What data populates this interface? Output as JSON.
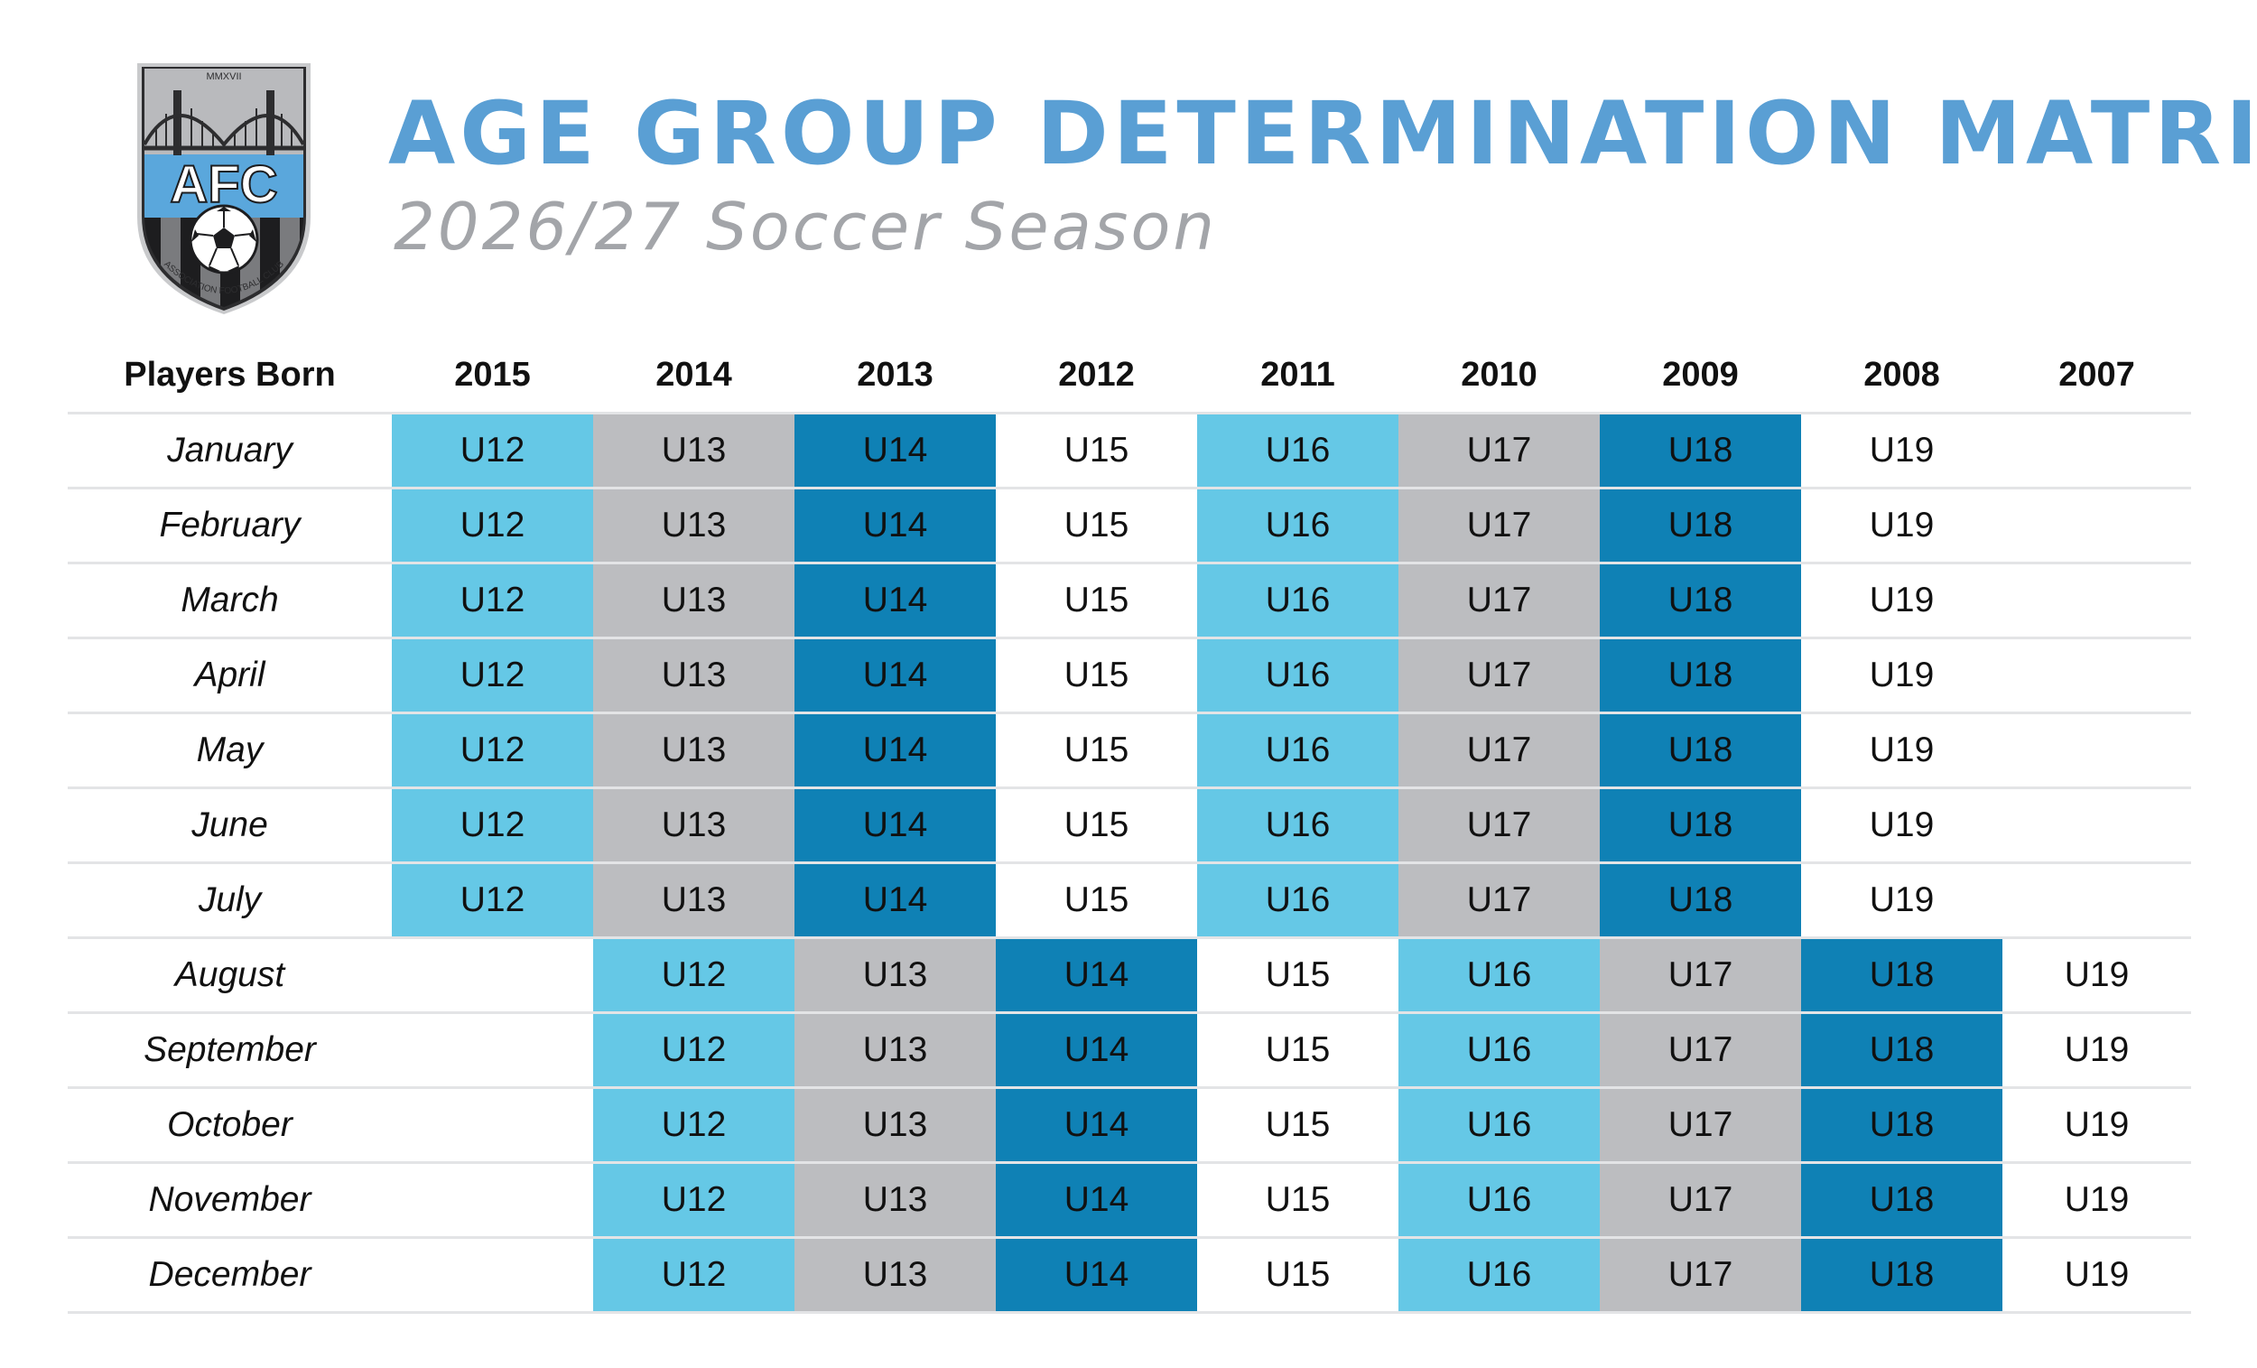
{
  "logo": {
    "top_text": "MMXVII",
    "letters": "AFC",
    "ring_text": "ASSOCIATION FOOTBALL CLUB"
  },
  "title": "AGE GROUP DETERMINATION MATRIX",
  "subtitle": "2026/27 Soccer Season",
  "table": {
    "header_label": "Players Born",
    "years": [
      "2015",
      "2014",
      "2013",
      "2012",
      "2011",
      "2010",
      "2009",
      "2008",
      "2007"
    ],
    "rows": [
      {
        "month": "January",
        "cells": [
          "U12",
          "U13",
          "U14",
          "U15",
          "U16",
          "U17",
          "U18",
          "U19",
          ""
        ]
      },
      {
        "month": "February",
        "cells": [
          "U12",
          "U13",
          "U14",
          "U15",
          "U16",
          "U17",
          "U18",
          "U19",
          ""
        ]
      },
      {
        "month": "March",
        "cells": [
          "U12",
          "U13",
          "U14",
          "U15",
          "U16",
          "U17",
          "U18",
          "U19",
          ""
        ]
      },
      {
        "month": "April",
        "cells": [
          "U12",
          "U13",
          "U14",
          "U15",
          "U16",
          "U17",
          "U18",
          "U19",
          ""
        ]
      },
      {
        "month": "May",
        "cells": [
          "U12",
          "U13",
          "U14",
          "U15",
          "U16",
          "U17",
          "U18",
          "U19",
          ""
        ]
      },
      {
        "month": "June",
        "cells": [
          "U12",
          "U13",
          "U14",
          "U15",
          "U16",
          "U17",
          "U18",
          "U19",
          ""
        ]
      },
      {
        "month": "July",
        "cells": [
          "U12",
          "U13",
          "U14",
          "U15",
          "U16",
          "U17",
          "U18",
          "U19",
          ""
        ]
      },
      {
        "month": "August",
        "cells": [
          "",
          "U12",
          "U13",
          "U14",
          "U15",
          "U16",
          "U17",
          "U18",
          "U19"
        ]
      },
      {
        "month": "September",
        "cells": [
          "",
          "U12",
          "U13",
          "U14",
          "U15",
          "U16",
          "U17",
          "U18",
          "U19"
        ]
      },
      {
        "month": "October",
        "cells": [
          "",
          "U12",
          "U13",
          "U14",
          "U15",
          "U16",
          "U17",
          "U18",
          "U19"
        ]
      },
      {
        "month": "November",
        "cells": [
          "",
          "U12",
          "U13",
          "U14",
          "U15",
          "U16",
          "U17",
          "U18",
          "U19"
        ]
      },
      {
        "month": "December",
        "cells": [
          "",
          "U12",
          "U13",
          "U14",
          "U15",
          "U16",
          "U17",
          "U18",
          "U19"
        ]
      }
    ]
  },
  "colors": {
    "title": "#5a9fd4",
    "subtitle": "#a3a5a9",
    "U12": "#65c8e6",
    "U13": "#bcbdc0",
    "U14": "#0f81b5",
    "U15": "#ffffff",
    "U16": "#65c8e6",
    "U17": "#bcbdc0",
    "U18": "#0f81b5",
    "U19": "#ffffff"
  }
}
